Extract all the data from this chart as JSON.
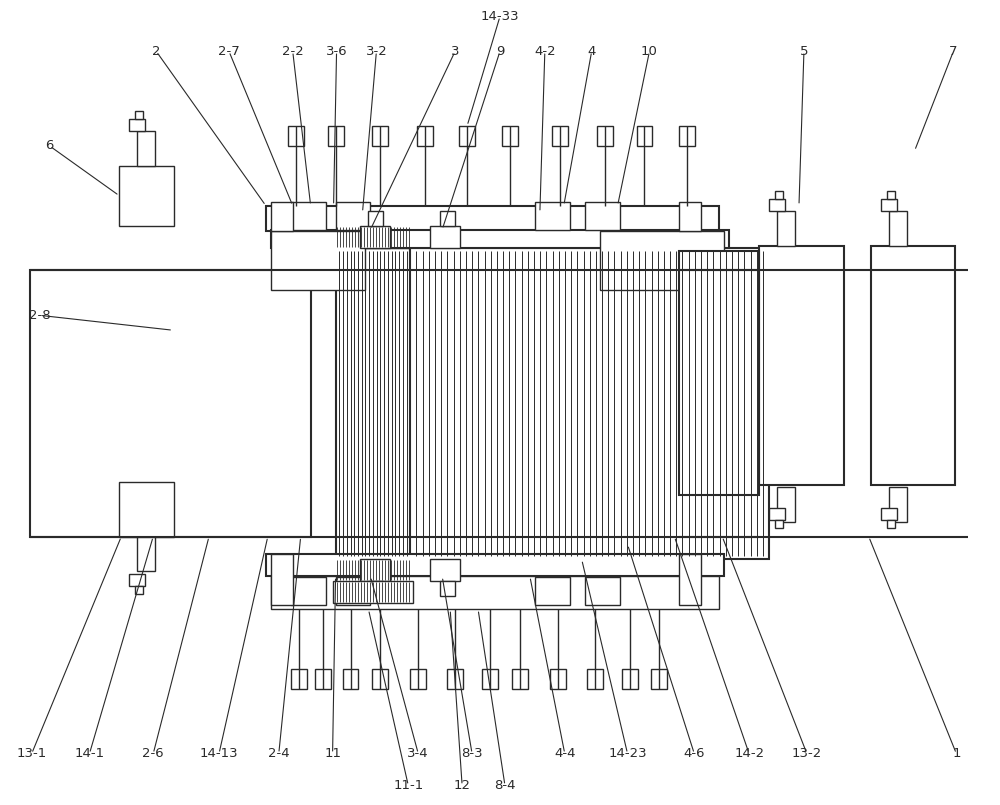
{
  "bg_color": "#ffffff",
  "lc": "#2a2a2a",
  "lw": 1.0,
  "tlw": 1.5
}
